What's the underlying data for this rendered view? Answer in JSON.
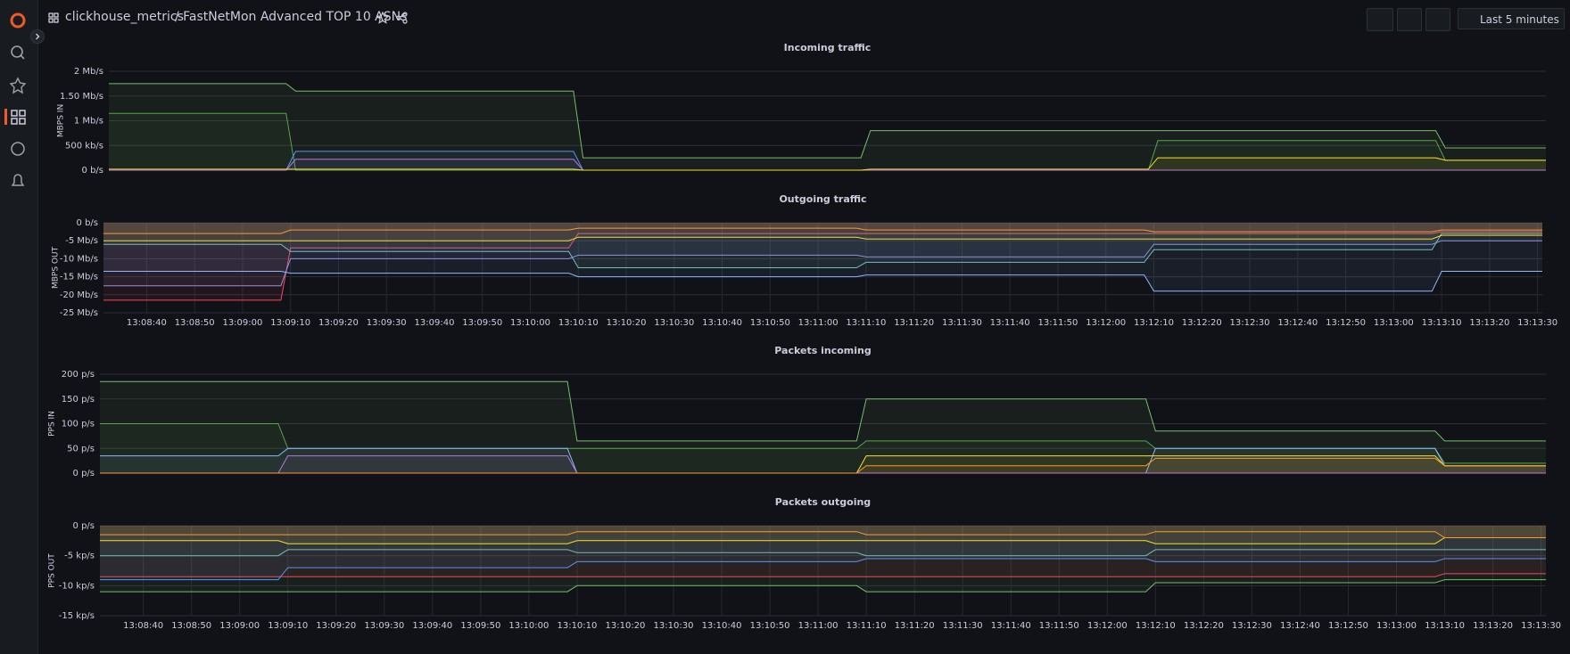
{
  "header": {
    "folder": "clickhouse_metrics",
    "dashboard": "/ FastNetMon Advanced TOP 10 ASNs",
    "time_range": "Last 5 minutes"
  },
  "chart_data": [
    {
      "type": "line",
      "title": "Incoming traffic",
      "y_label": "MBPS IN",
      "fill": true,
      "x": [
        "13:08:31",
        "13:09:08",
        "13:09:10",
        "13:10:08",
        "13:10:10",
        "13:11:08",
        "13:11:10",
        "13:12:08",
        "13:12:10",
        "13:13:08",
        "13:13:10",
        "13:13:31"
      ],
      "xlim": [
        "13:08:31",
        "13:13:31"
      ],
      "ylim": [
        0,
        2000000
      ],
      "yticks": [
        {
          "value": 0,
          "label": "0 b/s"
        },
        {
          "value": 500000,
          "label": "500 kb/s"
        },
        {
          "value": 1000000,
          "label": "1 Mb/s"
        },
        {
          "value": 1500000,
          "label": "1.50 Mb/s"
        },
        {
          "value": 2000000,
          "label": "2 Mb/s"
        }
      ],
      "series": [
        {
          "color": "#73bf69",
          "values": [
            1750000,
            1750000,
            1600000,
            1600000,
            250000,
            250000,
            800000,
            800000,
            800000,
            800000,
            450000,
            450000
          ]
        },
        {
          "color": "#56a64b",
          "values": [
            1150000,
            1150000,
            0,
            0,
            0,
            0,
            0,
            0,
            600000,
            600000,
            200000,
            200000
          ]
        },
        {
          "color": "#5794f2",
          "values": [
            0,
            0,
            380000,
            380000,
            0,
            0,
            0,
            0,
            0,
            0,
            0,
            0
          ]
        },
        {
          "color": "#b877d9",
          "values": [
            0,
            0,
            220000,
            220000,
            0,
            0,
            0,
            0,
            0,
            0,
            0,
            0
          ]
        },
        {
          "color": "#fade2a",
          "values": [
            20000,
            20000,
            20000,
            20000,
            0,
            0,
            20000,
            20000,
            250000,
            250000,
            200000,
            200000
          ]
        }
      ]
    },
    {
      "type": "line",
      "title": "Outgoing traffic",
      "y_label": "MBPS OUT",
      "fill": true,
      "x": [
        "13:08:31",
        "13:09:08",
        "13:09:10",
        "13:10:08",
        "13:10:10",
        "13:11:08",
        "13:11:10",
        "13:12:08",
        "13:12:10",
        "13:13:08",
        "13:13:10",
        "13:13:31"
      ],
      "xlim": [
        "13:08:31",
        "13:13:31"
      ],
      "xticks": [
        "13:08:40",
        "13:08:50",
        "13:09:00",
        "13:09:10",
        "13:09:20",
        "13:09:30",
        "13:09:40",
        "13:09:50",
        "13:10:00",
        "13:10:10",
        "13:10:20",
        "13:10:30",
        "13:10:40",
        "13:10:50",
        "13:11:00",
        "13:11:10",
        "13:11:20",
        "13:11:30",
        "13:11:40",
        "13:11:50",
        "13:12:00",
        "13:12:10",
        "13:12:20",
        "13:12:30",
        "13:12:40",
        "13:12:50",
        "13:13:00",
        "13:13:10",
        "13:13:20",
        "13:13:30"
      ],
      "ylim": [
        -25000000,
        0
      ],
      "yticks": [
        {
          "value": 0,
          "label": "0 b/s"
        },
        {
          "value": -5000000,
          "label": "-5 Mb/s"
        },
        {
          "value": -10000000,
          "label": "-10 Mb/s"
        },
        {
          "value": -15000000,
          "label": "-15 Mb/s"
        },
        {
          "value": -20000000,
          "label": "-20 Mb/s"
        },
        {
          "value": -25000000,
          "label": "-25 Mb/s"
        }
      ],
      "series": [
        {
          "color": "#f2495c",
          "values": [
            -21500000,
            -21500000,
            -7000000,
            -7000000,
            -3000000,
            -3000000,
            -3000000,
            -3000000,
            -3000000,
            -3000000,
            -2500000,
            -2500000
          ]
        },
        {
          "color": "#8f8fd9",
          "values": [
            -17500000,
            -17500000,
            -10000000,
            -10000000,
            -9000000,
            -9000000,
            -9500000,
            -9500000,
            -6000000,
            -6000000,
            -5000000,
            -5000000
          ]
        },
        {
          "color": "#8ab8ff",
          "values": [
            -13500000,
            -13500000,
            -14000000,
            -14000000,
            -15000000,
            -15000000,
            -14500000,
            -14500000,
            -19000000,
            -19000000,
            -13500000,
            -13500000
          ]
        },
        {
          "color": "#73bfb8",
          "values": [
            -6000000,
            -6000000,
            -8000000,
            -8000000,
            -12500000,
            -12500000,
            -11000000,
            -11000000,
            -7500000,
            -7500000,
            -3000000,
            -3000000
          ]
        },
        {
          "color": "#fade2a",
          "values": [
            -5000000,
            -5000000,
            -5000000,
            -5000000,
            -4000000,
            -4000000,
            -4500000,
            -4500000,
            -4500000,
            -4500000,
            -3500000,
            -3500000
          ]
        },
        {
          "color": "#ff9830",
          "values": [
            -3000000,
            -3000000,
            -2000000,
            -2000000,
            -1500000,
            -1500000,
            -2000000,
            -2000000,
            -2500000,
            -2500000,
            -2000000,
            -2000000
          ]
        }
      ]
    },
    {
      "type": "line",
      "title": "Packets incoming",
      "y_label": "PPS IN",
      "fill": true,
      "x": [
        "13:08:31",
        "13:09:08",
        "13:09:10",
        "13:10:08",
        "13:10:10",
        "13:11:08",
        "13:11:10",
        "13:12:08",
        "13:12:10",
        "13:13:08",
        "13:13:10",
        "13:13:31"
      ],
      "xlim": [
        "13:08:31",
        "13:13:31"
      ],
      "ylim": [
        0,
        200
      ],
      "yticks": [
        {
          "value": 0,
          "label": "0 p/s"
        },
        {
          "value": 50,
          "label": "50 p/s"
        },
        {
          "value": 100,
          "label": "100 p/s"
        },
        {
          "value": 150,
          "label": "150 p/s"
        },
        {
          "value": 200,
          "label": "200 p/s"
        }
      ],
      "series": [
        {
          "color": "#73bf69",
          "values": [
            185,
            185,
            185,
            185,
            65,
            65,
            150,
            150,
            85,
            85,
            65,
            65
          ]
        },
        {
          "color": "#56a64b",
          "values": [
            100,
            100,
            50,
            50,
            50,
            50,
            65,
            65,
            50,
            50,
            20,
            20
          ]
        },
        {
          "color": "#8ab8ff",
          "values": [
            35,
            35,
            50,
            50,
            0,
            0,
            0,
            0,
            50,
            50,
            15,
            15
          ]
        },
        {
          "color": "#b877d9",
          "values": [
            0,
            0,
            35,
            35,
            0,
            0,
            0,
            0,
            0,
            0,
            0,
            0
          ]
        },
        {
          "color": "#fade2a",
          "values": [
            0,
            0,
            0,
            0,
            0,
            0,
            35,
            35,
            35,
            35,
            15,
            15
          ]
        },
        {
          "color": "#ff9830",
          "values": [
            0,
            0,
            0,
            0,
            0,
            0,
            15,
            15,
            30,
            30,
            15,
            15
          ]
        }
      ]
    },
    {
      "type": "line",
      "title": "Packets outgoing",
      "y_label": "PPS OUT",
      "fill": true,
      "x": [
        "13:08:31",
        "13:09:08",
        "13:09:10",
        "13:10:08",
        "13:10:10",
        "13:11:08",
        "13:11:10",
        "13:12:08",
        "13:12:10",
        "13:13:08",
        "13:13:10",
        "13:13:31"
      ],
      "xlim": [
        "13:08:31",
        "13:13:31"
      ],
      "xticks": [
        "13:08:40",
        "13:08:50",
        "13:09:00",
        "13:09:10",
        "13:09:20",
        "13:09:30",
        "13:09:40",
        "13:09:50",
        "13:10:00",
        "13:10:10",
        "13:10:20",
        "13:10:30",
        "13:10:40",
        "13:10:50",
        "13:11:00",
        "13:11:10",
        "13:11:20",
        "13:11:30",
        "13:11:40",
        "13:11:50",
        "13:12:00",
        "13:12:10",
        "13:12:20",
        "13:12:30",
        "13:12:40",
        "13:12:50",
        "13:13:00",
        "13:13:10",
        "13:13:20",
        "13:13:30"
      ],
      "ylim": [
        -15000,
        0
      ],
      "yticks": [
        {
          "value": 0,
          "label": "0 p/s"
        },
        {
          "value": -5000,
          "label": "-5 kp/s"
        },
        {
          "value": -10000,
          "label": "-10 kp/s"
        },
        {
          "value": -15000,
          "label": "-15 kp/s"
        }
      ],
      "series": [
        {
          "color": "#73bf69",
          "values": [
            -11000,
            -11000,
            -11000,
            -11000,
            -10000,
            -10000,
            -11000,
            -11000,
            -9500,
            -9500,
            -9000,
            -9000
          ]
        },
        {
          "color": "#f2495c",
          "values": [
            -8500,
            -8500,
            -8500,
            -8500,
            -8500,
            -8500,
            -8500,
            -8500,
            -8500,
            -8500,
            -8000,
            -8000
          ]
        },
        {
          "color": "#5794f2",
          "values": [
            -9000,
            -9000,
            -7000,
            -7000,
            -6000,
            -6000,
            -5500,
            -5500,
            -6000,
            -6000,
            -5500,
            -5500
          ]
        },
        {
          "color": "#73bfb8",
          "values": [
            -5000,
            -5000,
            -4000,
            -4000,
            -4500,
            -4500,
            -5000,
            -5000,
            -4000,
            -4000,
            -4000,
            -4000
          ]
        },
        {
          "color": "#fade2a",
          "values": [
            -2500,
            -2500,
            -3000,
            -3000,
            -2500,
            -2500,
            -2500,
            -2500,
            -3000,
            -3000,
            -2000,
            -2000
          ]
        },
        {
          "color": "#ff9830",
          "values": [
            -1500,
            -1500,
            -1500,
            -1500,
            -1000,
            -1000,
            -1500,
            -1500,
            -1000,
            -1000,
            -2000,
            -2000
          ]
        }
      ]
    }
  ]
}
